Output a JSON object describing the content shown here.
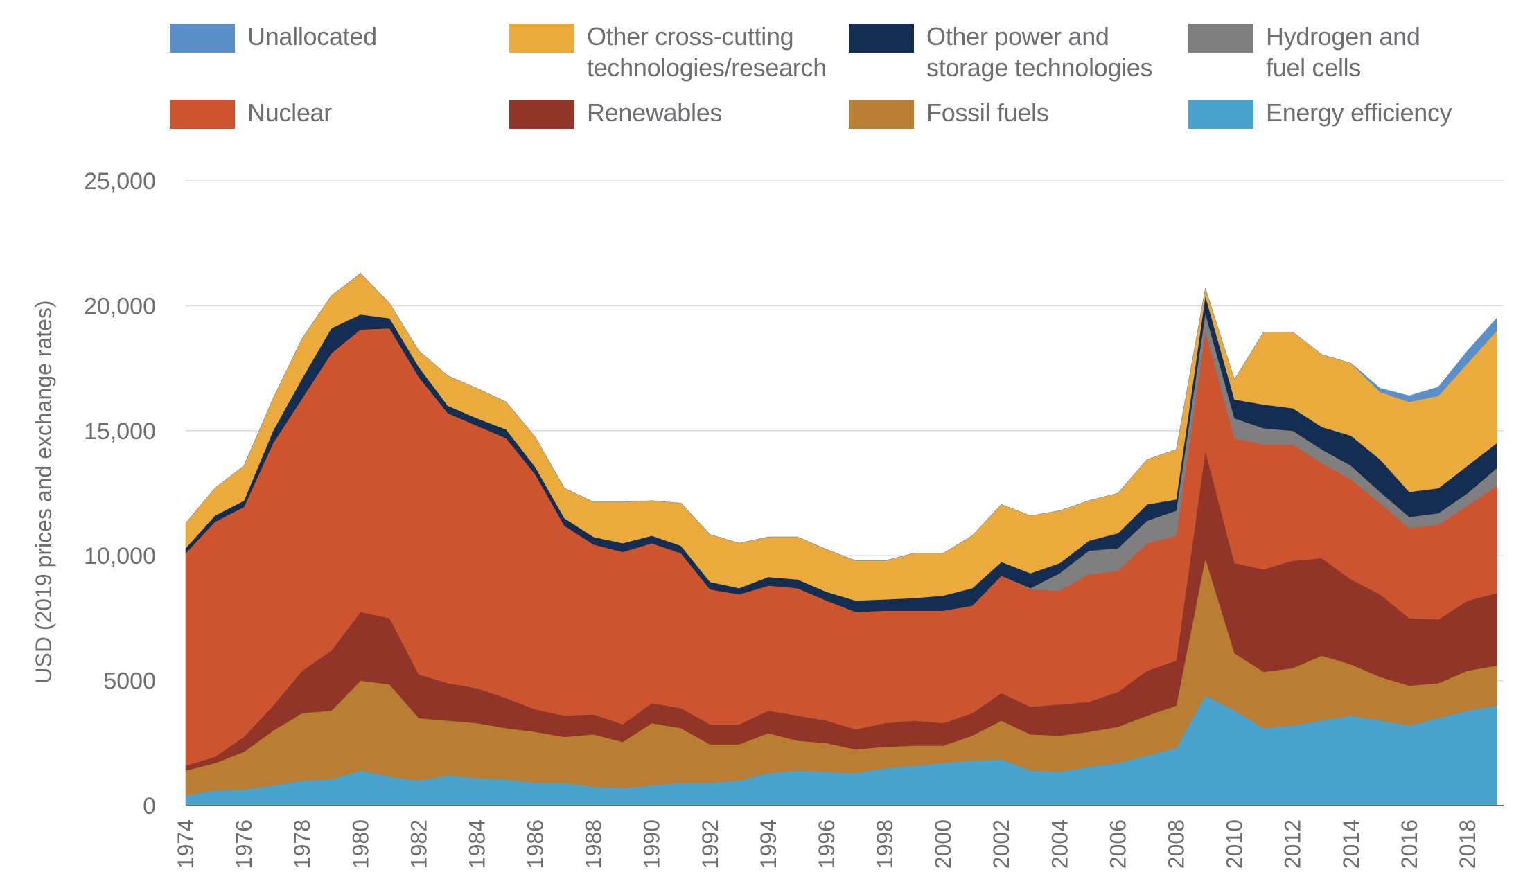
{
  "chart_data": {
    "type": "area",
    "stacked": true,
    "ylabel": "USD (2019 prices and exchange rates)",
    "xlabel": "",
    "ylim": [
      0,
      25000
    ],
    "yticks": [
      0,
      5000,
      10000,
      15000,
      20000,
      25000
    ],
    "ytick_labels": [
      "0",
      "5000",
      "10,000",
      "15,000",
      "20,000",
      "25,000"
    ],
    "xticks": [
      1974,
      1976,
      1978,
      1980,
      1982,
      1984,
      1986,
      1988,
      1990,
      1992,
      1994,
      1996,
      1998,
      2000,
      2002,
      2004,
      2006,
      2008,
      2010,
      2012,
      2014,
      2016,
      2018
    ],
    "grid": "horizontal",
    "legend_position": "top",
    "x": [
      1974,
      1975,
      1976,
      1977,
      1978,
      1979,
      1980,
      1981,
      1982,
      1983,
      1984,
      1985,
      1986,
      1987,
      1988,
      1989,
      1990,
      1991,
      1992,
      1993,
      1994,
      1995,
      1996,
      1997,
      1998,
      1999,
      2000,
      2001,
      2002,
      2003,
      2004,
      2005,
      2006,
      2007,
      2008,
      2009,
      2010,
      2011,
      2012,
      2013,
      2014,
      2015,
      2016,
      2017,
      2018,
      2019
    ],
    "series": [
      {
        "name": "Energy efficiency",
        "color": "#4aa3cc",
        "values": [
          400,
          600,
          650,
          800,
          1000,
          1050,
          1400,
          1150,
          1000,
          1200,
          1100,
          1050,
          900,
          900,
          750,
          700,
          800,
          900,
          900,
          1000,
          1300,
          1400,
          1350,
          1300,
          1500,
          1600,
          1700,
          1800,
          1850,
          1400,
          1350,
          1550,
          1700,
          2000,
          2300,
          4400,
          3800,
          3100,
          3200,
          3400,
          3600,
          3400,
          3200,
          3500,
          3800,
          4000
        ]
      },
      {
        "name": "Fossil fuels",
        "color": "#b97d34",
        "values": [
          1000,
          1100,
          1500,
          2200,
          2700,
          2750,
          3600,
          3700,
          2500,
          2200,
          2200,
          2050,
          2050,
          1850,
          2100,
          1850,
          2500,
          2200,
          1550,
          1450,
          1600,
          1200,
          1150,
          950,
          850,
          800,
          700,
          1000,
          1550,
          1450,
          1450,
          1400,
          1450,
          1600,
          1700,
          5500,
          2300,
          2250,
          2300,
          2600,
          2050,
          1750,
          1600,
          1400,
          1600,
          1600
        ]
      },
      {
        "name": "Renewables",
        "color": "#913528",
        "values": [
          200,
          250,
          600,
          1000,
          1700,
          2400,
          2750,
          2650,
          1750,
          1500,
          1400,
          1200,
          900,
          850,
          800,
          700,
          800,
          800,
          800,
          800,
          900,
          1000,
          900,
          800,
          950,
          1000,
          900,
          900,
          1100,
          1100,
          1250,
          1200,
          1400,
          1800,
          1800,
          4300,
          3600,
          4100,
          4300,
          3900,
          3400,
          3300,
          2700,
          2550,
          2800,
          2900
        ]
      },
      {
        "name": "Nuclear",
        "color": "#cc5530",
        "values": [
          8500,
          9400,
          9200,
          10500,
          10900,
          11900,
          11300,
          11600,
          11900,
          10800,
          10500,
          10400,
          9400,
          7600,
          6800,
          6900,
          6400,
          6200,
          5400,
          5200,
          5000,
          5100,
          4800,
          4700,
          4500,
          4400,
          4500,
          4300,
          4700,
          4700,
          4550,
          5100,
          4850,
          5100,
          5000,
          4800,
          5000,
          5000,
          4650,
          3800,
          4000,
          3650,
          3600,
          3800,
          3800,
          4300
        ]
      },
      {
        "name": "Hydrogen and fuel cells",
        "color": "#7f7f7f",
        "values": [
          0,
          0,
          0,
          0,
          0,
          0,
          0,
          0,
          0,
          0,
          0,
          0,
          0,
          0,
          0,
          0,
          0,
          0,
          0,
          0,
          0,
          0,
          0,
          0,
          0,
          0,
          0,
          0,
          0,
          50,
          700,
          950,
          900,
          900,
          1000,
          700,
          800,
          650,
          550,
          550,
          550,
          450,
          450,
          450,
          500,
          700
        ]
      },
      {
        "name": "Other power and storage technologies",
        "color": "#142d52",
        "values": [
          200,
          250,
          250,
          500,
          800,
          1000,
          600,
          400,
          400,
          300,
          300,
          350,
          300,
          300,
          300,
          350,
          300,
          300,
          300,
          250,
          350,
          350,
          350,
          450,
          450,
          500,
          600,
          700,
          550,
          600,
          400,
          400,
          600,
          650,
          450,
          700,
          750,
          950,
          900,
          900,
          1200,
          1300,
          1000,
          1000,
          1100,
          1000
        ]
      },
      {
        "name": "Other cross-cutting technologies/research",
        "color": "#ebaa3c",
        "values": [
          1000,
          1100,
          1400,
          1300,
          1600,
          1300,
          1650,
          600,
          650,
          1200,
          1200,
          1100,
          1200,
          1200,
          1400,
          1650,
          1400,
          1700,
          1900,
          1800,
          1600,
          1700,
          1700,
          1600,
          1550,
          1800,
          1700,
          2100,
          2300,
          2300,
          2100,
          1600,
          1600,
          1800,
          2000,
          300,
          800,
          2900,
          3050,
          2900,
          2900,
          2700,
          3600,
          3700,
          4100,
          4500
        ]
      },
      {
        "name": "Unallocated",
        "color": "#5b8fc9",
        "values": [
          0,
          0,
          0,
          0,
          0,
          0,
          0,
          0,
          0,
          0,
          0,
          0,
          0,
          0,
          0,
          0,
          0,
          0,
          0,
          0,
          0,
          0,
          0,
          0,
          0,
          0,
          0,
          0,
          0,
          0,
          0,
          0,
          0,
          0,
          0,
          0,
          0,
          0,
          0,
          0,
          0,
          150,
          250,
          350,
          500,
          500
        ]
      }
    ],
    "legend": [
      {
        "label_lines": [
          "Unallocated"
        ],
        "color": "#5b8fc9"
      },
      {
        "label_lines": [
          "Other cross-cutting",
          "technologies/research"
        ],
        "color": "#ebaa3c"
      },
      {
        "label_lines": [
          "Other power and",
          "storage technologies"
        ],
        "color": "#142d52"
      },
      {
        "label_lines": [
          "Hydrogen and",
          "fuel cells"
        ],
        "color": "#7f7f7f"
      },
      {
        "label_lines": [
          "Nuclear"
        ],
        "color": "#cc5530"
      },
      {
        "label_lines": [
          "Renewables"
        ],
        "color": "#913528"
      },
      {
        "label_lines": [
          "Fossil fuels"
        ],
        "color": "#b97d34"
      },
      {
        "label_lines": [
          "Energy efficiency"
        ],
        "color": "#4aa3cc"
      }
    ]
  },
  "colors": {
    "axis": "#6d6e71",
    "gridline": "#d9d9d9",
    "text": "#6d6e71"
  }
}
